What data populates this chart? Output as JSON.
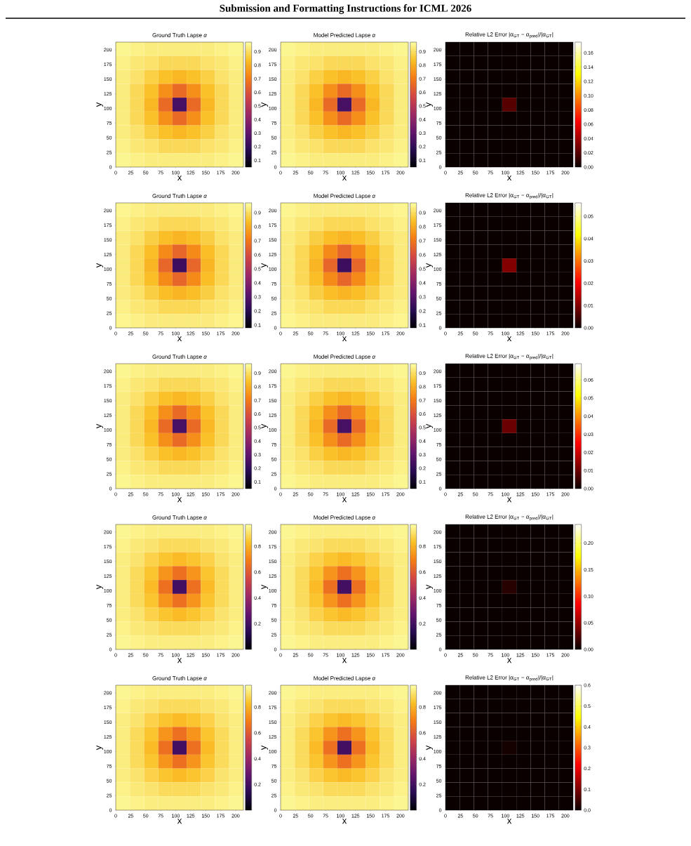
{
  "chart_data": [
    {
      "type": "heatmap",
      "title": "Ground Truth Lapse *α*",
      "xlabel": "x",
      "ylabel": "y",
      "annotations": [
        "Submission and Formatting Instructions for ICML 2026"
      ],
      "xlim": [
        0,
        213
      ],
      "ylim": [
        0,
        213
      ],
      "xticks": [
        0,
        25,
        50,
        75,
        100,
        125,
        150,
        175,
        200
      ],
      "yticks": [
        0,
        25,
        50,
        75,
        100,
        125,
        150,
        175,
        200
      ],
      "clim": [
        0.05,
        0.97
      ],
      "cticks": [
        0.1,
        0.2,
        0.3,
        0.4,
        0.5,
        0.6,
        0.7,
        0.8,
        0.9
      ],
      "cells": [
        [
          0.95,
          0.94,
          0.93,
          0.93,
          0.93,
          0.93,
          0.93,
          0.94,
          0.95
        ],
        [
          0.94,
          0.92,
          0.91,
          0.89,
          0.89,
          0.89,
          0.91,
          0.92,
          0.94
        ],
        [
          0.93,
          0.91,
          0.87,
          0.84,
          0.82,
          0.84,
          0.87,
          0.91,
          0.93
        ],
        [
          0.93,
          0.89,
          0.84,
          0.74,
          0.66,
          0.74,
          0.84,
          0.89,
          0.93
        ],
        [
          0.93,
          0.89,
          0.82,
          0.66,
          0.25,
          0.66,
          0.82,
          0.89,
          0.93
        ],
        [
          0.93,
          0.89,
          0.84,
          0.74,
          0.66,
          0.74,
          0.84,
          0.89,
          0.93
        ],
        [
          0.93,
          0.91,
          0.87,
          0.84,
          0.82,
          0.84,
          0.87,
          0.91,
          0.93
        ],
        [
          0.94,
          0.92,
          0.91,
          0.89,
          0.89,
          0.89,
          0.91,
          0.92,
          0.94
        ],
        [
          0.95,
          0.94,
          0.93,
          0.93,
          0.93,
          0.93,
          0.93,
          0.94,
          0.95
        ]
      ]
    },
    {
      "type": "heatmap",
      "title": "Model Predicted Lapse *α*",
      "xlabel": "x",
      "ylabel": "y",
      "xlim": [
        0,
        213
      ],
      "ylim": [
        0,
        213
      ],
      "xticks": [
        0,
        25,
        50,
        75,
        100,
        125,
        150,
        175,
        200
      ],
      "yticks": [
        0,
        25,
        50,
        75,
        100,
        125,
        150,
        175,
        200
      ],
      "clim": [
        0.05,
        0.97
      ],
      "cticks": [
        0.1,
        0.2,
        0.3,
        0.4,
        0.5,
        0.6,
        0.7,
        0.8,
        0.9
      ],
      "cells": [
        [
          0.95,
          0.94,
          0.93,
          0.93,
          0.93,
          0.93,
          0.93,
          0.94,
          0.95
        ],
        [
          0.94,
          0.92,
          0.91,
          0.89,
          0.89,
          0.89,
          0.91,
          0.92,
          0.94
        ],
        [
          0.93,
          0.91,
          0.87,
          0.84,
          0.82,
          0.84,
          0.87,
          0.91,
          0.93
        ],
        [
          0.93,
          0.89,
          0.84,
          0.74,
          0.66,
          0.74,
          0.84,
          0.89,
          0.93
        ],
        [
          0.93,
          0.89,
          0.82,
          0.66,
          0.25,
          0.66,
          0.82,
          0.89,
          0.93
        ],
        [
          0.93,
          0.89,
          0.84,
          0.74,
          0.66,
          0.74,
          0.84,
          0.89,
          0.93
        ],
        [
          0.93,
          0.91,
          0.87,
          0.84,
          0.82,
          0.84,
          0.87,
          0.91,
          0.93
        ],
        [
          0.94,
          0.92,
          0.91,
          0.89,
          0.89,
          0.89,
          0.91,
          0.92,
          0.94
        ],
        [
          0.95,
          0.94,
          0.93,
          0.93,
          0.93,
          0.93,
          0.93,
          0.94,
          0.95
        ]
      ]
    },
    {
      "type": "heatmap",
      "title": "Relative L2 Error |*α*$_{GT}$ − *α*$_{pred}$|/|*α*$_{GT}$|",
      "xlabel": "x",
      "ylabel": "y",
      "xlim": [
        0,
        213
      ],
      "ylim": [
        0,
        213
      ],
      "xticks": [
        0,
        25,
        50,
        75,
        100,
        125,
        150,
        175,
        200
      ],
      "yticks": [
        0,
        25,
        50,
        75,
        100,
        125,
        150,
        175,
        200
      ],
      "clim": [
        0,
        0.175
      ],
      "cticks": [
        {
          "value": 0,
          "label": "0.00"
        },
        {
          "value": 0.02,
          "label": "0.02"
        },
        {
          "value": 0.04,
          "label": "0.04"
        },
        {
          "value": 0.06,
          "label": "0.06"
        },
        {
          "value": 0.08,
          "label": "0.08"
        },
        {
          "value": 0.1,
          "label": "0.10"
        },
        {
          "value": 0.12,
          "label": "0.12"
        },
        {
          "value": 0.14,
          "label": "0.14"
        },
        {
          "value": 0.16,
          "label": "0.16"
        }
      ],
      "cells": [
        [
          0,
          0,
          0,
          0,
          0,
          0,
          0,
          0,
          0
        ],
        [
          0,
          0,
          0,
          0,
          0,
          0,
          0,
          0,
          0
        ],
        [
          0,
          0,
          0,
          0,
          0,
          0,
          0,
          0,
          0
        ],
        [
          0,
          0,
          0,
          0,
          0,
          0,
          0,
          0,
          0
        ],
        [
          0,
          0,
          0,
          0,
          0.02,
          0,
          0,
          0,
          0
        ],
        [
          0,
          0,
          0,
          0,
          0,
          0,
          0,
          0,
          0
        ],
        [
          0,
          0,
          0,
          0,
          0,
          0,
          0,
          0,
          0
        ],
        [
          0,
          0,
          0,
          0,
          0,
          0,
          0,
          0,
          0
        ],
        [
          0,
          0,
          0,
          0,
          0,
          0,
          0,
          0,
          0
        ]
      ]
    },
    {
      "type": "heatmap",
      "title": "Ground Truth Lapse *α*",
      "xlabel": "x",
      "ylabel": "y",
      "xlim": [
        0,
        213
      ],
      "ylim": [
        0,
        213
      ],
      "xticks": [
        0,
        25,
        50,
        75,
        100,
        125,
        150,
        175,
        200
      ],
      "yticks": [
        0,
        25,
        50,
        75,
        100,
        125,
        150,
        175,
        200
      ],
      "clim": [
        0.08,
        0.97
      ],
      "cticks": [
        0.1,
        0.2,
        0.3,
        0.4,
        0.5,
        0.6,
        0.7,
        0.8,
        0.9
      ],
      "cells": [
        [
          0.95,
          0.94,
          0.93,
          0.93,
          0.93,
          0.93,
          0.93,
          0.94,
          0.95
        ],
        [
          0.94,
          0.92,
          0.91,
          0.89,
          0.89,
          0.89,
          0.91,
          0.92,
          0.94
        ],
        [
          0.93,
          0.91,
          0.87,
          0.84,
          0.82,
          0.84,
          0.87,
          0.91,
          0.93
        ],
        [
          0.93,
          0.89,
          0.84,
          0.74,
          0.66,
          0.74,
          0.84,
          0.89,
          0.93
        ],
        [
          0.93,
          0.89,
          0.82,
          0.66,
          0.25,
          0.66,
          0.82,
          0.89,
          0.93
        ],
        [
          0.93,
          0.89,
          0.84,
          0.74,
          0.66,
          0.74,
          0.84,
          0.89,
          0.93
        ],
        [
          0.93,
          0.91,
          0.87,
          0.84,
          0.82,
          0.84,
          0.87,
          0.91,
          0.93
        ],
        [
          0.94,
          0.92,
          0.91,
          0.89,
          0.89,
          0.89,
          0.91,
          0.92,
          0.94
        ],
        [
          0.95,
          0.94,
          0.93,
          0.93,
          0.93,
          0.93,
          0.93,
          0.94,
          0.95
        ]
      ]
    },
    {
      "type": "heatmap",
      "title": "Model Predicted Lapse *α*",
      "xlabel": "x",
      "ylabel": "y",
      "xlim": [
        0,
        213
      ],
      "ylim": [
        0,
        213
      ],
      "xticks": [
        0,
        25,
        50,
        75,
        100,
        125,
        150,
        175,
        200
      ],
      "yticks": [
        0,
        25,
        50,
        75,
        100,
        125,
        150,
        175,
        200
      ],
      "clim": [
        0.08,
        0.97
      ],
      "cticks": [
        0.1,
        0.2,
        0.3,
        0.4,
        0.5,
        0.6,
        0.7,
        0.8,
        0.9
      ],
      "cells": [
        [
          0.95,
          0.94,
          0.93,
          0.93,
          0.93,
          0.93,
          0.93,
          0.94,
          0.95
        ],
        [
          0.94,
          0.92,
          0.91,
          0.89,
          0.89,
          0.89,
          0.91,
          0.92,
          0.94
        ],
        [
          0.93,
          0.91,
          0.87,
          0.84,
          0.82,
          0.84,
          0.87,
          0.91,
          0.93
        ],
        [
          0.93,
          0.89,
          0.84,
          0.74,
          0.66,
          0.74,
          0.84,
          0.89,
          0.93
        ],
        [
          0.93,
          0.89,
          0.82,
          0.66,
          0.25,
          0.66,
          0.82,
          0.89,
          0.93
        ],
        [
          0.93,
          0.89,
          0.84,
          0.74,
          0.66,
          0.74,
          0.84,
          0.89,
          0.93
        ],
        [
          0.93,
          0.91,
          0.87,
          0.84,
          0.82,
          0.84,
          0.87,
          0.91,
          0.93
        ],
        [
          0.94,
          0.92,
          0.91,
          0.89,
          0.89,
          0.89,
          0.91,
          0.92,
          0.94
        ],
        [
          0.95,
          0.94,
          0.93,
          0.93,
          0.93,
          0.93,
          0.93,
          0.94,
          0.95
        ]
      ]
    },
    {
      "type": "heatmap",
      "title": "Relative L2 Error |*α*$_{GT}$ − *α*$_{pred}$|/|*α*$_{GT}$|",
      "xlabel": "x",
      "ylabel": "y",
      "xlim": [
        0,
        213
      ],
      "ylim": [
        0,
        213
      ],
      "xticks": [
        0,
        25,
        50,
        75,
        100,
        125,
        150,
        175,
        200
      ],
      "yticks": [
        0,
        25,
        50,
        75,
        100,
        125,
        150,
        175,
        200
      ],
      "clim": [
        0,
        0.056
      ],
      "cticks": [
        {
          "value": 0,
          "label": "0.00"
        },
        {
          "value": 0.01,
          "label": "0.01"
        },
        {
          "value": 0.02,
          "label": "0.02"
        },
        {
          "value": 0.03,
          "label": "0.03"
        },
        {
          "value": 0.04,
          "label": "0.04"
        },
        {
          "value": 0.05,
          "label": "0.05"
        }
      ],
      "cells": [
        [
          0,
          0,
          0,
          0,
          0,
          0,
          0,
          0,
          0
        ],
        [
          0,
          0,
          0,
          0,
          0,
          0,
          0,
          0,
          0
        ],
        [
          0,
          0,
          0,
          0,
          0,
          0,
          0,
          0,
          0
        ],
        [
          0,
          0,
          0,
          0,
          0,
          0,
          0,
          0,
          0
        ],
        [
          0,
          0,
          0,
          0,
          0.01,
          0,
          0,
          0,
          0
        ],
        [
          0,
          0,
          0,
          0,
          0,
          0,
          0,
          0,
          0
        ],
        [
          0,
          0,
          0,
          0,
          0,
          0,
          0,
          0,
          0
        ],
        [
          0,
          0,
          0,
          0,
          0,
          0,
          0,
          0,
          0
        ],
        [
          0,
          0,
          0,
          0,
          0,
          0,
          0,
          0,
          0
        ]
      ]
    },
    {
      "type": "heatmap",
      "title": "Ground Truth Lapse *α*",
      "xlabel": "x",
      "ylabel": "y",
      "xlim": [
        0,
        213
      ],
      "ylim": [
        0,
        213
      ],
      "xticks": [
        0,
        25,
        50,
        75,
        100,
        125,
        150,
        175,
        200
      ],
      "yticks": [
        0,
        25,
        50,
        75,
        100,
        125,
        150,
        175,
        200
      ],
      "clim": [
        0.05,
        0.97
      ],
      "cticks": [
        0.1,
        0.2,
        0.3,
        0.4,
        0.5,
        0.6,
        0.7,
        0.8,
        0.9
      ],
      "cells": [
        [
          0.95,
          0.94,
          0.93,
          0.93,
          0.93,
          0.93,
          0.93,
          0.94,
          0.95
        ],
        [
          0.94,
          0.92,
          0.91,
          0.89,
          0.89,
          0.89,
          0.91,
          0.92,
          0.94
        ],
        [
          0.93,
          0.91,
          0.87,
          0.84,
          0.82,
          0.84,
          0.87,
          0.91,
          0.93
        ],
        [
          0.93,
          0.89,
          0.84,
          0.74,
          0.66,
          0.74,
          0.84,
          0.89,
          0.93
        ],
        [
          0.93,
          0.89,
          0.82,
          0.66,
          0.25,
          0.66,
          0.82,
          0.89,
          0.93
        ],
        [
          0.93,
          0.89,
          0.84,
          0.74,
          0.66,
          0.74,
          0.84,
          0.89,
          0.93
        ],
        [
          0.93,
          0.91,
          0.87,
          0.84,
          0.82,
          0.84,
          0.87,
          0.91,
          0.93
        ],
        [
          0.94,
          0.92,
          0.91,
          0.89,
          0.89,
          0.89,
          0.91,
          0.92,
          0.94
        ],
        [
          0.95,
          0.94,
          0.93,
          0.93,
          0.93,
          0.93,
          0.93,
          0.94,
          0.95
        ]
      ]
    },
    {
      "type": "heatmap",
      "title": "Model Predicted Lapse *α*",
      "xlabel": "x",
      "ylabel": "y",
      "xlim": [
        0,
        213
      ],
      "ylim": [
        0,
        213
      ],
      "xticks": [
        0,
        25,
        50,
        75,
        100,
        125,
        150,
        175,
        200
      ],
      "yticks": [
        0,
        25,
        50,
        75,
        100,
        125,
        150,
        175,
        200
      ],
      "clim": [
        0.05,
        0.97
      ],
      "cticks": [
        0.1,
        0.2,
        0.3,
        0.4,
        0.5,
        0.6,
        0.7,
        0.8,
        0.9
      ],
      "cells": [
        [
          0.95,
          0.94,
          0.93,
          0.93,
          0.93,
          0.93,
          0.93,
          0.94,
          0.95
        ],
        [
          0.94,
          0.92,
          0.91,
          0.89,
          0.89,
          0.89,
          0.91,
          0.92,
          0.94
        ],
        [
          0.93,
          0.91,
          0.87,
          0.84,
          0.82,
          0.84,
          0.87,
          0.91,
          0.93
        ],
        [
          0.93,
          0.89,
          0.84,
          0.74,
          0.66,
          0.74,
          0.84,
          0.89,
          0.93
        ],
        [
          0.93,
          0.89,
          0.82,
          0.66,
          0.25,
          0.66,
          0.82,
          0.89,
          0.93
        ],
        [
          0.93,
          0.89,
          0.84,
          0.74,
          0.66,
          0.74,
          0.84,
          0.89,
          0.93
        ],
        [
          0.93,
          0.91,
          0.87,
          0.84,
          0.82,
          0.84,
          0.87,
          0.91,
          0.93
        ],
        [
          0.94,
          0.92,
          0.91,
          0.89,
          0.89,
          0.89,
          0.91,
          0.92,
          0.94
        ],
        [
          0.95,
          0.94,
          0.93,
          0.93,
          0.93,
          0.93,
          0.93,
          0.94,
          0.95
        ]
      ]
    },
    {
      "type": "heatmap",
      "title": "Relative L2 Error |*α*$_{GT}$ − *α*$_{pred}$|/|*α*$_{GT}$|",
      "xlabel": "x",
      "ylabel": "y",
      "xlim": [
        0,
        213
      ],
      "ylim": [
        0,
        213
      ],
      "xticks": [
        0,
        25,
        50,
        75,
        100,
        125,
        150,
        175,
        200
      ],
      "yticks": [
        0,
        25,
        50,
        75,
        100,
        125,
        150,
        175,
        200
      ],
      "clim": [
        0,
        0.069
      ],
      "cticks": [
        {
          "value": 0,
          "label": "0.00"
        },
        {
          "value": 0.01,
          "label": "0.01"
        },
        {
          "value": 0.02,
          "label": "0.02"
        },
        {
          "value": 0.03,
          "label": "0.03"
        },
        {
          "value": 0.04,
          "label": "0.04"
        },
        {
          "value": 0.05,
          "label": "0.05"
        },
        {
          "value": 0.06,
          "label": "0.06"
        }
      ],
      "cells": [
        [
          0,
          0,
          0,
          0,
          0,
          0,
          0,
          0,
          0
        ],
        [
          0,
          0,
          0,
          0,
          0,
          0,
          0,
          0,
          0
        ],
        [
          0,
          0,
          0,
          0,
          0,
          0,
          0,
          0,
          0
        ],
        [
          0,
          0,
          0,
          0,
          0,
          0,
          0,
          0,
          0
        ],
        [
          0,
          0,
          0,
          0,
          0.01,
          0,
          0,
          0,
          0
        ],
        [
          0,
          0,
          0,
          0,
          0,
          0,
          0,
          0,
          0
        ],
        [
          0,
          0,
          0,
          0,
          0,
          0,
          0,
          0,
          0
        ],
        [
          0,
          0,
          0,
          0,
          0,
          0,
          0,
          0,
          0
        ],
        [
          0,
          0,
          0,
          0,
          0,
          0,
          0,
          0,
          0
        ]
      ]
    },
    {
      "type": "heatmap",
      "title": "Ground Truth Lapse *α*",
      "xlabel": "x",
      "ylabel": "y",
      "xlim": [
        0,
        213
      ],
      "ylim": [
        0,
        213
      ],
      "xticks": [
        0,
        25,
        50,
        75,
        100,
        125,
        150,
        175,
        200
      ],
      "yticks": [
        0,
        25,
        50,
        75,
        100,
        125,
        150,
        175,
        200
      ],
      "clim": [
        0.0,
        0.97
      ],
      "cticks": [
        0.2,
        0.4,
        0.6,
        0.8
      ],
      "cells": [
        [
          0.95,
          0.94,
          0.93,
          0.93,
          0.93,
          0.93,
          0.93,
          0.94,
          0.95
        ],
        [
          0.94,
          0.92,
          0.91,
          0.89,
          0.89,
          0.89,
          0.91,
          0.92,
          0.94
        ],
        [
          0.93,
          0.91,
          0.87,
          0.84,
          0.82,
          0.84,
          0.87,
          0.91,
          0.93
        ],
        [
          0.93,
          0.89,
          0.84,
          0.74,
          0.66,
          0.74,
          0.84,
          0.89,
          0.93
        ],
        [
          0.93,
          0.89,
          0.82,
          0.66,
          0.2,
          0.66,
          0.82,
          0.89,
          0.93
        ],
        [
          0.93,
          0.89,
          0.84,
          0.74,
          0.66,
          0.74,
          0.84,
          0.89,
          0.93
        ],
        [
          0.93,
          0.91,
          0.87,
          0.84,
          0.82,
          0.84,
          0.87,
          0.91,
          0.93
        ],
        [
          0.94,
          0.92,
          0.91,
          0.89,
          0.89,
          0.89,
          0.91,
          0.92,
          0.94
        ],
        [
          0.95,
          0.94,
          0.93,
          0.93,
          0.93,
          0.93,
          0.93,
          0.94,
          0.95
        ]
      ]
    },
    {
      "type": "heatmap",
      "title": "Model Predicted Lapse *α*",
      "xlabel": "x",
      "ylabel": "y",
      "xlim": [
        0,
        213
      ],
      "ylim": [
        0,
        213
      ],
      "xticks": [
        0,
        25,
        50,
        75,
        100,
        125,
        150,
        175,
        200
      ],
      "yticks": [
        0,
        25,
        50,
        75,
        100,
        125,
        150,
        175,
        200
      ],
      "clim": [
        0.0,
        0.97
      ],
      "cticks": [
        0.2,
        0.4,
        0.6,
        0.8
      ],
      "cells": [
        [
          0.95,
          0.94,
          0.93,
          0.93,
          0.93,
          0.93,
          0.93,
          0.94,
          0.95
        ],
        [
          0.94,
          0.92,
          0.91,
          0.89,
          0.89,
          0.89,
          0.91,
          0.92,
          0.94
        ],
        [
          0.93,
          0.91,
          0.87,
          0.84,
          0.82,
          0.84,
          0.87,
          0.91,
          0.93
        ],
        [
          0.93,
          0.89,
          0.84,
          0.74,
          0.66,
          0.74,
          0.84,
          0.89,
          0.93
        ],
        [
          0.93,
          0.89,
          0.82,
          0.66,
          0.2,
          0.66,
          0.82,
          0.89,
          0.93
        ],
        [
          0.93,
          0.89,
          0.84,
          0.74,
          0.66,
          0.74,
          0.84,
          0.89,
          0.93
        ],
        [
          0.93,
          0.91,
          0.87,
          0.84,
          0.82,
          0.84,
          0.87,
          0.91,
          0.93
        ],
        [
          0.94,
          0.92,
          0.91,
          0.89,
          0.89,
          0.89,
          0.91,
          0.92,
          0.94
        ],
        [
          0.95,
          0.94,
          0.93,
          0.93,
          0.93,
          0.93,
          0.93,
          0.94,
          0.95
        ]
      ]
    },
    {
      "type": "heatmap",
      "title": "Relative L2 Error |*α*$_{GT}$ − *α*$_{pred}$|/|*α*$_{GT}$|",
      "xlabel": "x",
      "ylabel": "y",
      "xlim": [
        0,
        213
      ],
      "ylim": [
        0,
        213
      ],
      "xticks": [
        0,
        25,
        50,
        75,
        100,
        125,
        150,
        175,
        200
      ],
      "yticks": [
        0,
        25,
        50,
        75,
        100,
        125,
        150,
        175,
        200
      ],
      "clim": [
        0,
        0.235
      ],
      "cticks": [
        {
          "value": 0,
          "label": "0.00"
        },
        {
          "value": 0.05,
          "label": "0.05"
        },
        {
          "value": 0.1,
          "label": "0.10"
        },
        {
          "value": 0.15,
          "label": "0.15"
        },
        {
          "value": 0.2,
          "label": "0.20"
        }
      ],
      "cells": [
        [
          0,
          0,
          0,
          0,
          0,
          0,
          0,
          0,
          0
        ],
        [
          0,
          0,
          0,
          0,
          0,
          0,
          0,
          0,
          0
        ],
        [
          0,
          0,
          0,
          0,
          0,
          0,
          0,
          0,
          0
        ],
        [
          0,
          0,
          0,
          0,
          0,
          0,
          0,
          0,
          0
        ],
        [
          0,
          0,
          0,
          0,
          0.01,
          0,
          0,
          0,
          0
        ],
        [
          0,
          0,
          0,
          0,
          0,
          0,
          0,
          0,
          0
        ],
        [
          0,
          0,
          0,
          0,
          0,
          0,
          0,
          0,
          0
        ],
        [
          0,
          0,
          0,
          0,
          0,
          0,
          0,
          0,
          0
        ],
        [
          0,
          0,
          0,
          0,
          0,
          0,
          0,
          0,
          0
        ]
      ]
    },
    {
      "type": "heatmap",
      "title": "Ground Truth Lapse *α*",
      "xlabel": "x",
      "ylabel": "y",
      "xlim": [
        0,
        213
      ],
      "ylim": [
        0,
        213
      ],
      "xticks": [
        0,
        25,
        50,
        75,
        100,
        125,
        150,
        175,
        200
      ],
      "yticks": [
        0,
        25,
        50,
        75,
        100,
        125,
        150,
        175,
        200
      ],
      "clim": [
        0.0,
        0.97
      ],
      "cticks": [
        0.2,
        0.4,
        0.6,
        0.8
      ],
      "cells": [
        [
          0.95,
          0.94,
          0.93,
          0.93,
          0.93,
          0.93,
          0.93,
          0.94,
          0.95
        ],
        [
          0.94,
          0.92,
          0.91,
          0.89,
          0.89,
          0.89,
          0.91,
          0.92,
          0.94
        ],
        [
          0.93,
          0.91,
          0.87,
          0.84,
          0.82,
          0.84,
          0.87,
          0.91,
          0.93
        ],
        [
          0.93,
          0.89,
          0.84,
          0.74,
          0.66,
          0.74,
          0.84,
          0.89,
          0.93
        ],
        [
          0.93,
          0.89,
          0.82,
          0.66,
          0.2,
          0.66,
          0.82,
          0.89,
          0.93
        ],
        [
          0.93,
          0.89,
          0.84,
          0.74,
          0.66,
          0.74,
          0.84,
          0.89,
          0.93
        ],
        [
          0.93,
          0.91,
          0.87,
          0.84,
          0.82,
          0.84,
          0.87,
          0.91,
          0.93
        ],
        [
          0.94,
          0.92,
          0.91,
          0.89,
          0.89,
          0.89,
          0.91,
          0.92,
          0.94
        ],
        [
          0.95,
          0.94,
          0.93,
          0.93,
          0.93,
          0.93,
          0.93,
          0.94,
          0.95
        ]
      ]
    },
    {
      "type": "heatmap",
      "title": "Model Predicted Lapse *α*",
      "xlabel": "x",
      "ylabel": "y",
      "xlim": [
        0,
        213
      ],
      "ylim": [
        0,
        213
      ],
      "xticks": [
        0,
        25,
        50,
        75,
        100,
        125,
        150,
        175,
        200
      ],
      "yticks": [
        0,
        25,
        50,
        75,
        100,
        125,
        150,
        175,
        200
      ],
      "clim": [
        0.0,
        0.97
      ],
      "cticks": [
        0.2,
        0.4,
        0.6,
        0.8
      ],
      "cells": [
        [
          0.95,
          0.94,
          0.93,
          0.93,
          0.93,
          0.93,
          0.93,
          0.94,
          0.95
        ],
        [
          0.94,
          0.92,
          0.91,
          0.89,
          0.89,
          0.89,
          0.91,
          0.92,
          0.94
        ],
        [
          0.93,
          0.91,
          0.87,
          0.84,
          0.82,
          0.84,
          0.87,
          0.91,
          0.93
        ],
        [
          0.93,
          0.89,
          0.84,
          0.74,
          0.66,
          0.74,
          0.84,
          0.89,
          0.93
        ],
        [
          0.93,
          0.89,
          0.82,
          0.66,
          0.2,
          0.66,
          0.82,
          0.89,
          0.93
        ],
        [
          0.93,
          0.89,
          0.84,
          0.74,
          0.66,
          0.74,
          0.84,
          0.89,
          0.93
        ],
        [
          0.93,
          0.91,
          0.87,
          0.84,
          0.82,
          0.84,
          0.87,
          0.91,
          0.93
        ],
        [
          0.94,
          0.92,
          0.91,
          0.89,
          0.89,
          0.89,
          0.91,
          0.92,
          0.94
        ],
        [
          0.95,
          0.94,
          0.93,
          0.93,
          0.93,
          0.93,
          0.93,
          0.94,
          0.95
        ]
      ]
    },
    {
      "type": "heatmap",
      "title": "Relative L2 Error |*α*$_{GT}$ − *α*$_{pred}$|/|*α*$_{GT}$|",
      "xlabel": "x",
      "ylabel": "y",
      "xlim": [
        0,
        213
      ],
      "ylim": [
        0,
        213
      ],
      "xticks": [
        0,
        25,
        50,
        75,
        100,
        125,
        150,
        175,
        200
      ],
      "yticks": [
        0,
        25,
        50,
        75,
        100,
        125,
        150,
        175,
        200
      ],
      "clim": [
        0,
        0.6
      ],
      "cticks": [
        {
          "value": 0,
          "label": "0.0"
        },
        {
          "value": 0.1,
          "label": "0.1"
        },
        {
          "value": 0.2,
          "label": "0.2"
        },
        {
          "value": 0.3,
          "label": "0.3"
        },
        {
          "value": 0.4,
          "label": "0.4"
        },
        {
          "value": 0.5,
          "label": "0.5"
        },
        {
          "value": 0.6,
          "label": "0.6"
        }
      ],
      "cells": [
        [
          0,
          0,
          0,
          0,
          0,
          0,
          0,
          0,
          0
        ],
        [
          0,
          0,
          0,
          0,
          0,
          0,
          0,
          0,
          0
        ],
        [
          0,
          0,
          0,
          0,
          0,
          0,
          0,
          0,
          0
        ],
        [
          0,
          0,
          0,
          0,
          0,
          0,
          0,
          0,
          0
        ],
        [
          0,
          0,
          0,
          0,
          0.01,
          0,
          0,
          0,
          0
        ],
        [
          0,
          0,
          0,
          0,
          0,
          0,
          0,
          0,
          0
        ],
        [
          0,
          0,
          0,
          0,
          0,
          0,
          0,
          0,
          0
        ],
        [
          0,
          0,
          0,
          0,
          0,
          0,
          0,
          0,
          0
        ],
        [
          0,
          0,
          0,
          0,
          0,
          0,
          0,
          0,
          0
        ]
      ]
    }
  ]
}
